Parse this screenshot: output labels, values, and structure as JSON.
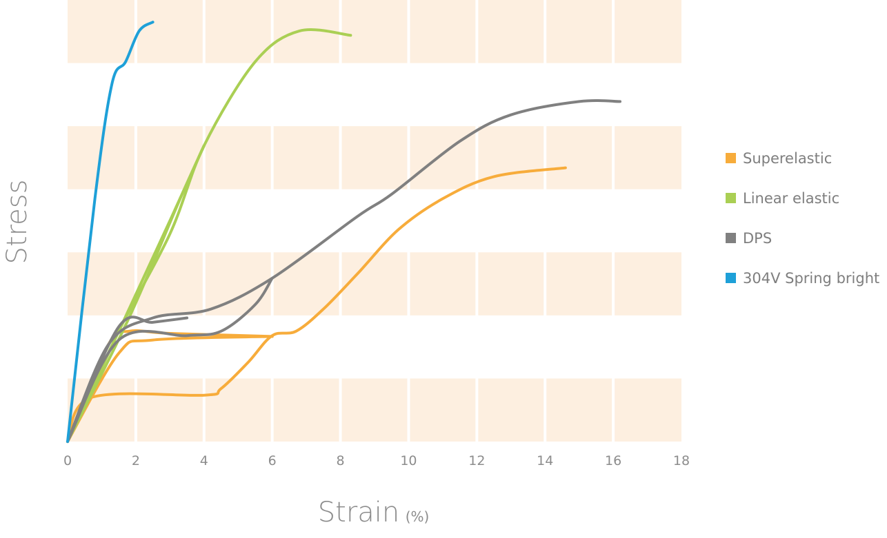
{
  "chart_data": {
    "type": "line",
    "title": "",
    "xlabel": "Strain",
    "xlabel_unit": "(%)",
    "ylabel": "Stress",
    "xlim": [
      0,
      18
    ],
    "ylim": [
      0,
      1
    ],
    "x_ticks": [
      0,
      2,
      4,
      6,
      8,
      10,
      12,
      14,
      16,
      18
    ],
    "y_ticks_shown": false,
    "grid": "alternating shaded bands",
    "band_color": "#fdefe0",
    "legend_position": "right",
    "series": [
      {
        "name": "Superelastic",
        "color": "#f7ac3b",
        "paths": [
          [
            [
              0,
              0
            ],
            [
              0.7,
              0.1
            ],
            [
              4,
              0.105
            ],
            [
              4.5,
              0.12
            ],
            [
              5.3,
              0.18
            ],
            [
              6,
              0.24
            ],
            [
              6.7,
              0.25
            ],
            [
              7.5,
              0.3
            ],
            [
              8.5,
              0.38
            ],
            [
              9.7,
              0.48
            ],
            [
              11,
              0.55
            ],
            [
              12.5,
              0.6
            ],
            [
              14.6,
              0.62
            ]
          ],
          [
            [
              0,
              0
            ],
            [
              1.2,
              0.22
            ],
            [
              1.8,
              0.25
            ],
            [
              3,
              0.245
            ],
            [
              6,
              0.238
            ]
          ],
          [
            [
              0,
              0
            ],
            [
              1.5,
              0.2
            ],
            [
              2.5,
              0.23
            ],
            [
              6,
              0.238
            ]
          ]
        ]
      },
      {
        "name": "Linear elastic",
        "color": "#aacf54",
        "paths": [
          [
            [
              0,
              0
            ],
            [
              1.5,
              0.25
            ],
            [
              3,
              0.47
            ],
            [
              4,
              0.67
            ],
            [
              5.5,
              0.86
            ],
            [
              6.8,
              0.93
            ],
            [
              8.3,
              0.92
            ]
          ],
          [
            [
              0,
              0
            ],
            [
              1.5,
              0.25
            ],
            [
              3,
              0.5
            ],
            [
              4,
              0.67
            ]
          ],
          [
            [
              0,
              0
            ],
            [
              1.8,
              0.28
            ],
            [
              3.3,
              0.55
            ],
            [
              4,
              0.67
            ]
          ]
        ]
      },
      {
        "name": "DPS",
        "color": "#808080",
        "paths": [
          [
            [
              0,
              0
            ],
            [
              1.2,
              0.22
            ],
            [
              2.5,
              0.28
            ],
            [
              4.2,
              0.3
            ],
            [
              6,
              0.37
            ],
            [
              8.5,
              0.51
            ],
            [
              9.5,
              0.56
            ],
            [
              11.5,
              0.68
            ],
            [
              13,
              0.74
            ],
            [
              15,
              0.77
            ],
            [
              16.2,
              0.77
            ]
          ],
          [
            [
              0,
              0
            ],
            [
              1.5,
              0.23
            ],
            [
              3.5,
              0.24
            ],
            [
              4.5,
              0.25
            ],
            [
              5.5,
              0.31
            ],
            [
              6,
              0.37
            ]
          ],
          [
            [
              0,
              0
            ],
            [
              1.5,
              0.26
            ],
            [
              2.5,
              0.27
            ],
            [
              3.5,
              0.28
            ]
          ]
        ]
      },
      {
        "name": "304V Spring bright",
        "color": "#1ea0d8",
        "paths": [
          [
            [
              0,
              0
            ],
            [
              0.8,
              0.55
            ],
            [
              1.3,
              0.81
            ],
            [
              1.7,
              0.86
            ],
            [
              2.1,
              0.93
            ],
            [
              2.5,
              0.95
            ]
          ]
        ]
      }
    ]
  }
}
